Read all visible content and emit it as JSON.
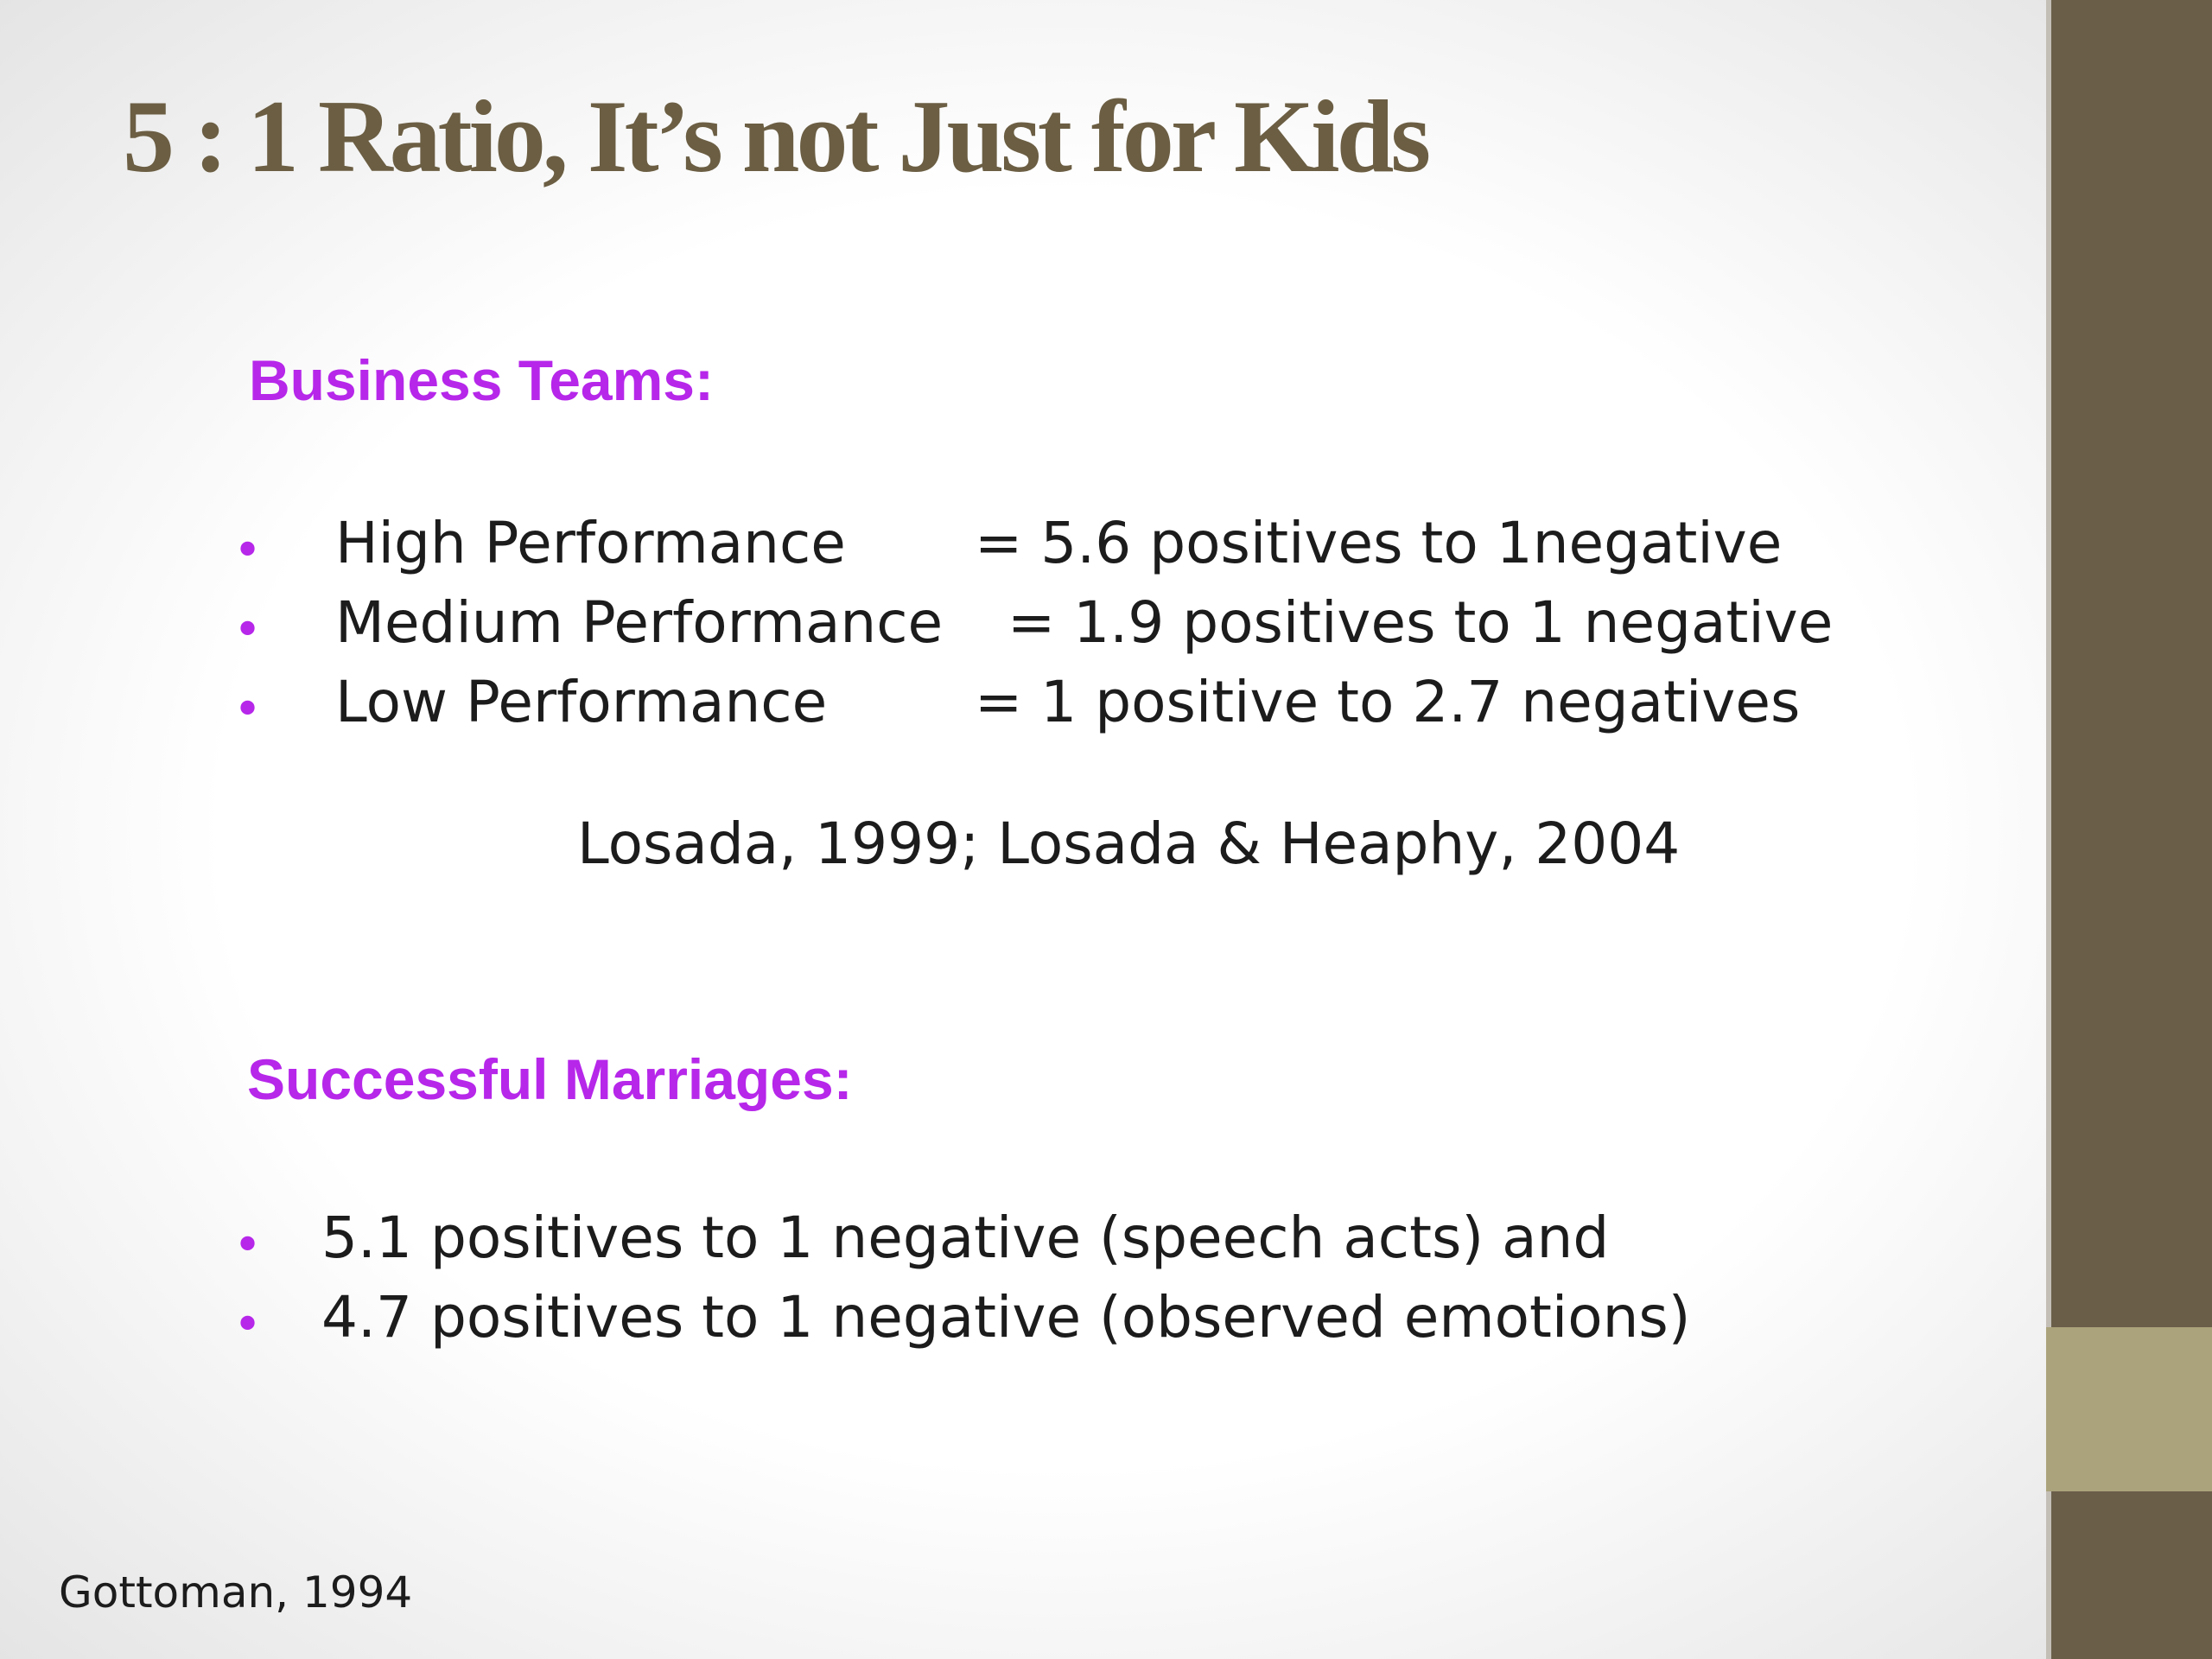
{
  "slide": {
    "title": "5 : 1 Ratio, It’s not Just for Kids",
    "business": {
      "heading": "Business Teams:",
      "items": [
        {
          "label": "High Performance",
          "value": "= 5.6 positives to 1negative"
        },
        {
          "label": "Medium Performance",
          "value": "= 1.9 positives to 1 negative"
        },
        {
          "label": "Low Performance",
          "value": "=  1 positive to 2.7 negatives"
        }
      ],
      "citation": "Losada, 1999; Losada & Heaphy, 2004"
    },
    "marriages": {
      "heading": "Successful Marriages:",
      "items": [
        "5.1 positives to 1 negative (speech acts) and",
        "4.7 positives to 1 negative (observed emotions)"
      ]
    },
    "footnote": "Gottoman, 1994",
    "bullet_glyph": "•"
  },
  "colors": {
    "title": "#6b5e43",
    "heading_accent": "#b627ea",
    "body_text": "#1c1c1c",
    "sidebar": "#6a5e49",
    "sidebar_accent": "#aba37b"
  }
}
